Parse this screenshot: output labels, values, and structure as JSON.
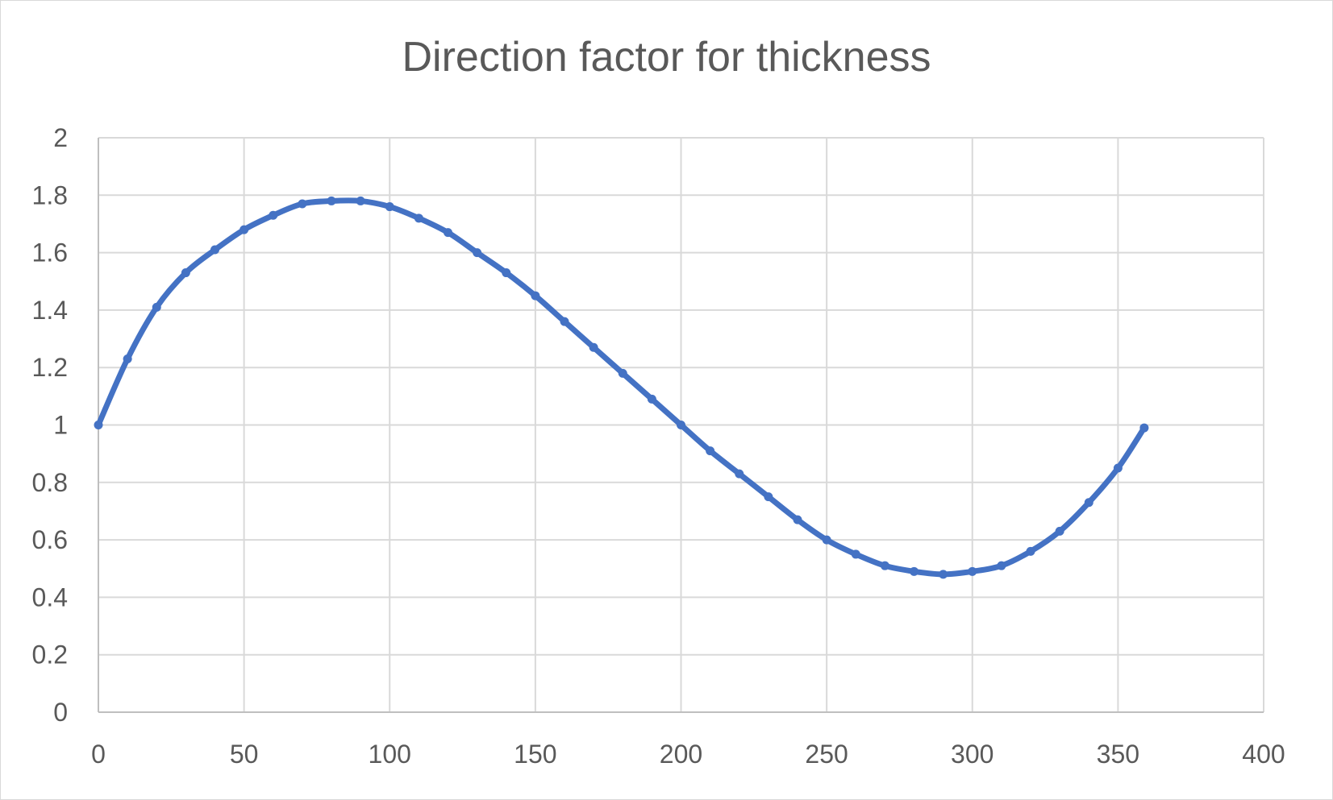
{
  "chart_data": {
    "type": "scatter",
    "title": "Direction factor for thickness",
    "xlabel": "",
    "ylabel": "",
    "xlim": [
      0,
      400
    ],
    "ylim": [
      0,
      2
    ],
    "x_ticks": [
      0,
      50,
      100,
      150,
      200,
      250,
      300,
      350,
      400
    ],
    "y_ticks": [
      0,
      0.2,
      0.4,
      0.6,
      0.8,
      1,
      1.2,
      1.4,
      1.6,
      1.8,
      2
    ],
    "grid": true,
    "legend": "none",
    "series": [
      {
        "color": "#4472C4",
        "marker": "circle",
        "line": true,
        "x": [
          0,
          10,
          20,
          30,
          40,
          50,
          60,
          70,
          80,
          90,
          100,
          110,
          120,
          130,
          140,
          150,
          160,
          170,
          180,
          190,
          200,
          210,
          220,
          230,
          240,
          250,
          260,
          270,
          280,
          290,
          300,
          310,
          320,
          330,
          340,
          350,
          359
        ],
        "y": [
          1.0,
          1.23,
          1.41,
          1.53,
          1.61,
          1.68,
          1.73,
          1.77,
          1.78,
          1.78,
          1.76,
          1.72,
          1.67,
          1.6,
          1.53,
          1.45,
          1.36,
          1.27,
          1.18,
          1.09,
          1.0,
          0.91,
          0.83,
          0.75,
          0.67,
          0.6,
          0.55,
          0.51,
          0.49,
          0.48,
          0.49,
          0.51,
          0.56,
          0.63,
          0.73,
          0.85,
          0.99
        ]
      }
    ]
  }
}
